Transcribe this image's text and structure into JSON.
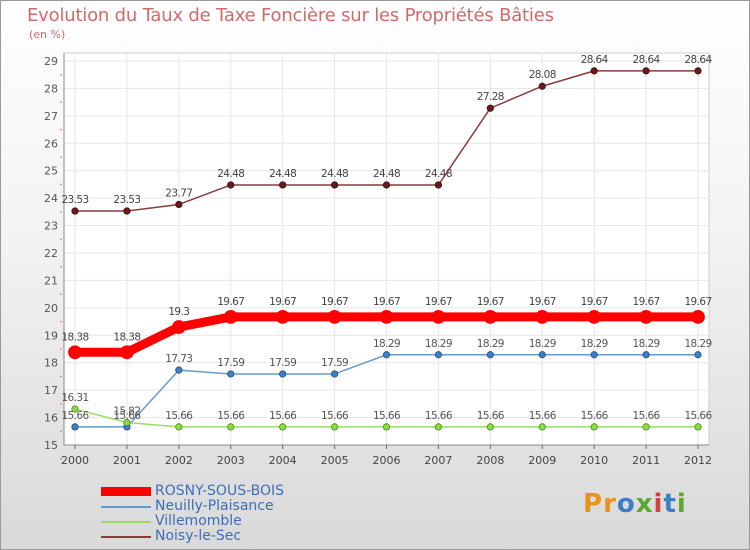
{
  "title": "Evolution du Taux de Taxe Foncière sur les Propriétés Bâties",
  "unit_label": "(en %)",
  "logo_text": "Proxiti",
  "logo_colors": [
    "#e8931e",
    "#e8931e",
    "#3d7fc4",
    "#5aa832",
    "#d64040",
    "#3d7fc4",
    "#5aa832"
  ],
  "chart_data": {
    "type": "line",
    "title": "Evolution du Taux de Taxe Foncière sur les Propriétés Bâties",
    "ylabel": "(en %)",
    "xlabel": "",
    "ylim": [
      15,
      29
    ],
    "yticks": [
      15,
      16,
      17,
      18,
      19,
      20,
      21,
      22,
      23,
      24,
      25,
      26,
      27,
      28,
      29
    ],
    "categories": [
      "2000",
      "2001",
      "2002",
      "2003",
      "2004",
      "2005",
      "2006",
      "2007",
      "2008",
      "2009",
      "2010",
      "2011",
      "2012"
    ],
    "grid": true,
    "legend_position": "bottom-left",
    "series": [
      {
        "name": "ROSNY-SOUS-BOIS",
        "color": "#ff0000",
        "values": [
          18.38,
          18.38,
          19.3,
          19.67,
          19.67,
          19.67,
          19.67,
          19.67,
          19.67,
          19.67,
          19.67,
          19.67,
          19.67
        ],
        "labels": [
          "18.38",
          "18.38",
          "19.3",
          "19.67",
          "19.67",
          "19.67",
          "19.67",
          "19.67",
          "19.67",
          "19.67",
          "19.67",
          "19.67",
          "19.67"
        ]
      },
      {
        "name": "Neuilly-Plaisance",
        "color": "#6699cc",
        "values": [
          15.66,
          15.66,
          17.73,
          17.59,
          17.59,
          17.59,
          18.29,
          18.29,
          18.29,
          18.29,
          18.29,
          18.29,
          18.29
        ],
        "labels": [
          "15.66",
          "15.66",
          "17.73",
          "17.59",
          "17.59",
          "17.59",
          "18.29",
          "18.29",
          "18.29",
          "18.29",
          "18.29",
          "18.29",
          "18.29"
        ]
      },
      {
        "name": "Villemomble",
        "color": "#99dd66",
        "values": [
          16.31,
          15.82,
          15.66,
          15.66,
          15.66,
          15.66,
          15.66,
          15.66,
          15.66,
          15.66,
          15.66,
          15.66,
          15.66
        ],
        "labels": [
          "16.31",
          "15.82",
          "15.66",
          "15.66",
          "15.66",
          "15.66",
          "15.66",
          "15.66",
          "15.66",
          "15.66",
          "15.66",
          "15.66",
          "15.66"
        ]
      },
      {
        "name": "Noisy-le-Sec",
        "color": "#8b3a3a",
        "values": [
          23.53,
          23.53,
          23.77,
          24.48,
          24.48,
          24.48,
          24.48,
          24.48,
          27.28,
          28.08,
          28.64,
          28.64,
          28.64
        ],
        "labels": [
          "23.53",
          "23.53",
          "23.77",
          "24.48",
          "24.48",
          "24.48",
          "24.48",
          "24.48",
          "27.28",
          "28.08",
          "28.64",
          "28.64",
          "28.64"
        ]
      }
    ]
  }
}
